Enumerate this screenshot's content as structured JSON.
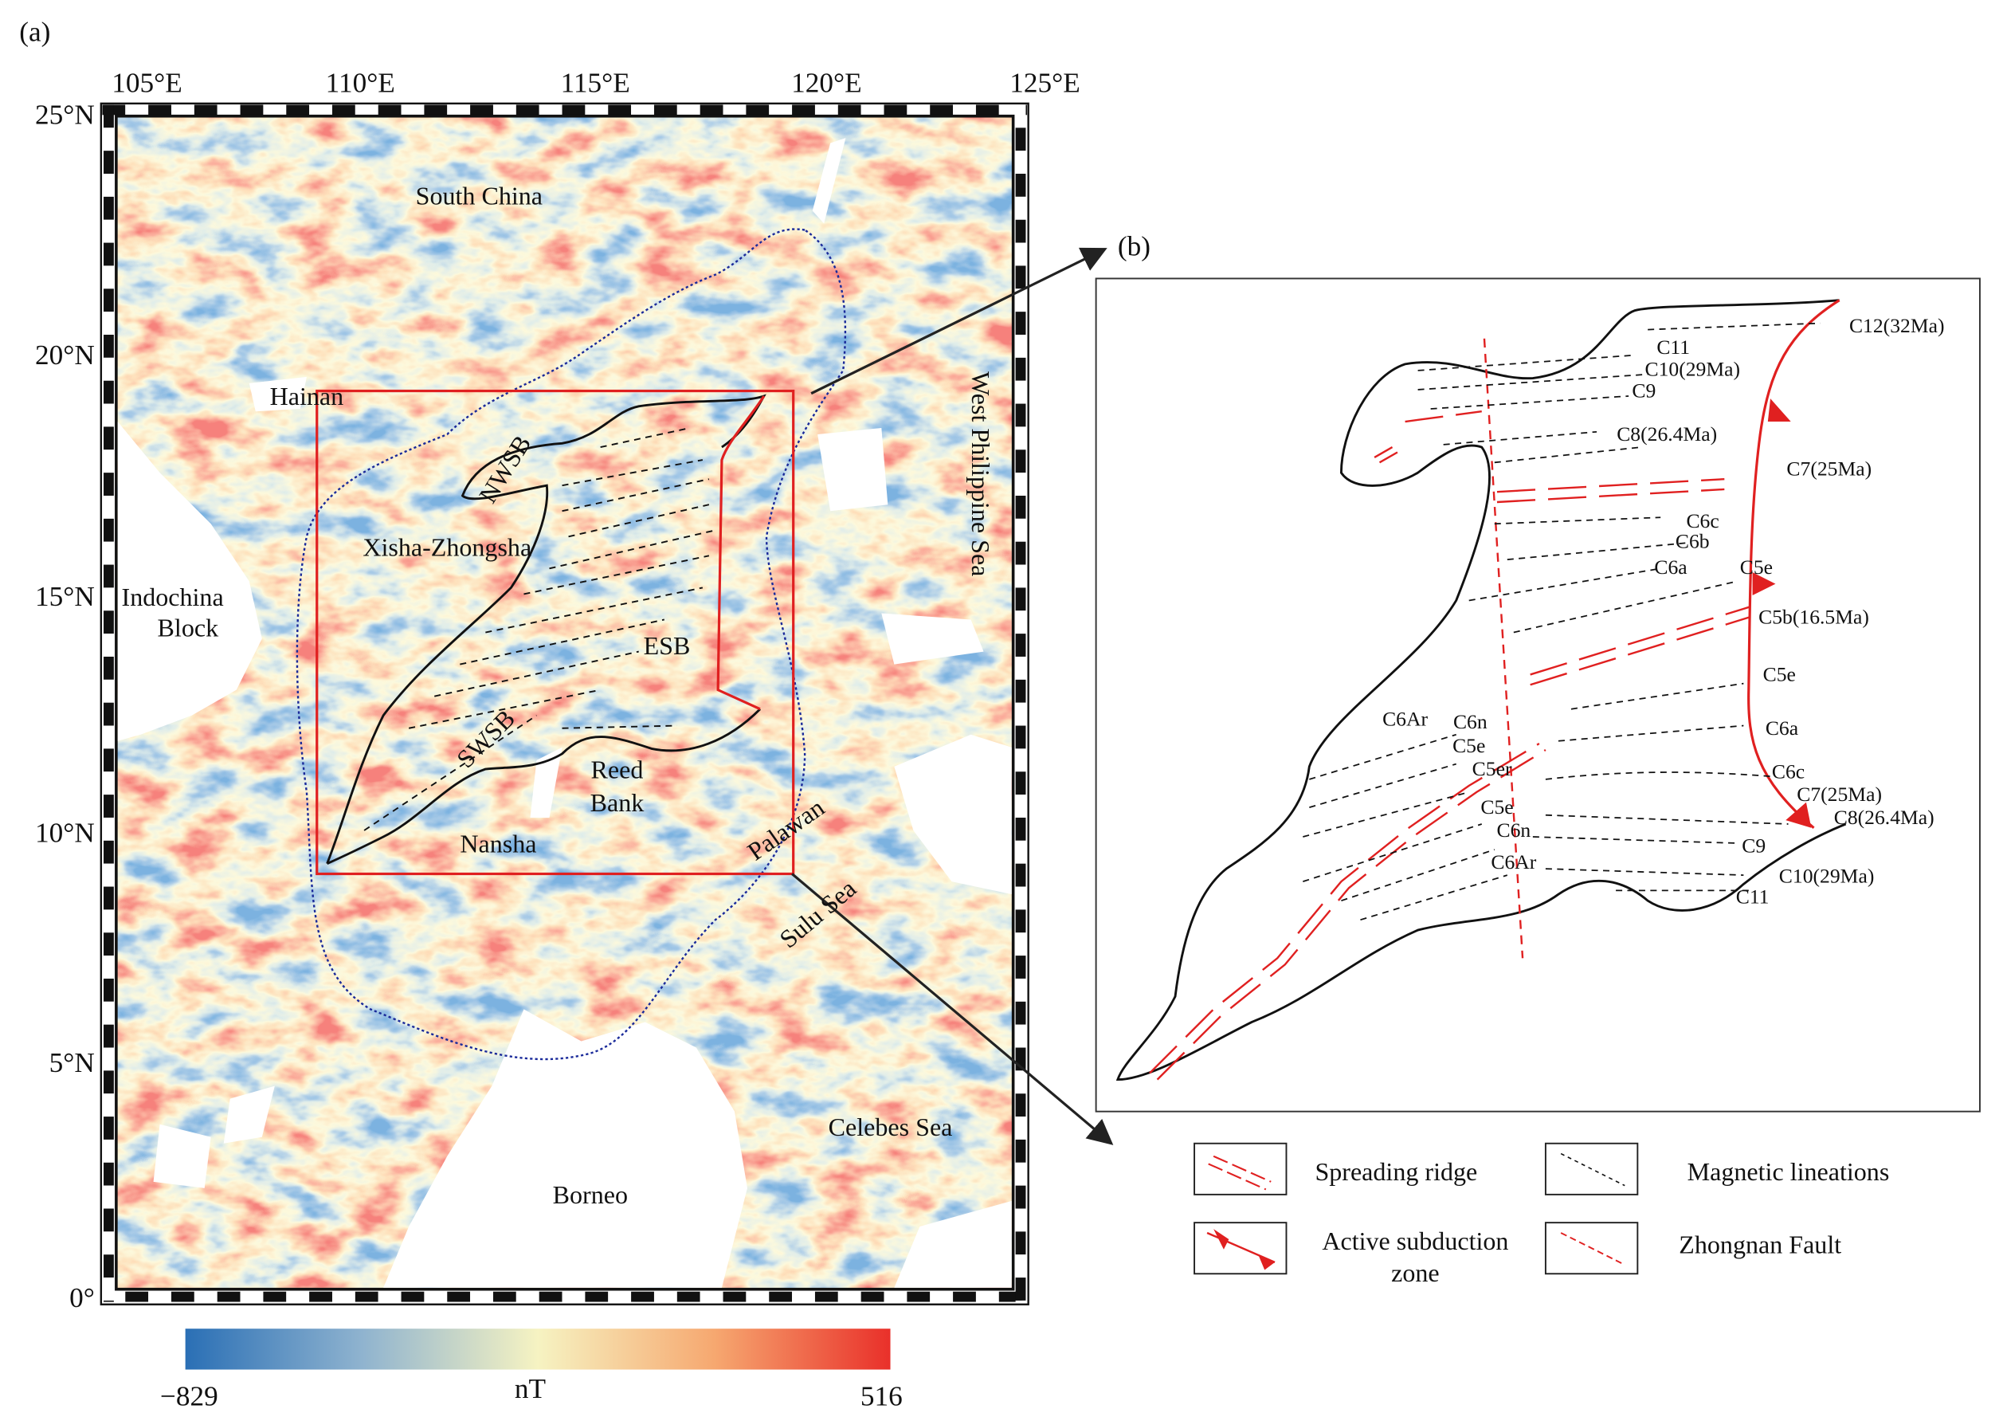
{
  "panel_a": {
    "label": "(a)",
    "lon_labels": [
      "105°E",
      "110°E",
      "115°E",
      "120°E",
      "125°E"
    ],
    "lat_labels": [
      "25°N",
      "20°N",
      "15°N",
      "10°N",
      "5°N",
      "0°"
    ],
    "places": [
      "South China",
      "Hainan",
      "Xisha-Zhongsha",
      "Indochina",
      "Block",
      "NWSB",
      "ESB",
      "SWSB",
      "Reed",
      "Bank",
      "Nansha",
      "Palawan",
      "Sulu Sea",
      "Celebes Sea",
      "Borneo",
      "West Philippine Sea"
    ]
  },
  "colorbar": {
    "min": "−829",
    "unit": "nT",
    "max": "516"
  },
  "panel_b": {
    "label": "(b)",
    "lineations": [
      "C12(32Ma)",
      "C11",
      "C10(29Ma)",
      "C9",
      "C8(26.4Ma)",
      "C7(25Ma)",
      "C6c",
      "C6b",
      "C6a",
      "C5e",
      "C5b(16.5Ma)",
      "C5e",
      "C6a",
      "C6Ar",
      "C6n",
      "C5e",
      "C5er",
      "C6c",
      "C7(25Ma)",
      "C5e",
      "C8(26.4Ma)",
      "C6n",
      "C9",
      "C6Ar",
      "C10(29Ma)",
      "C11"
    ]
  },
  "legend": {
    "spreading_ridge": "Spreading ridge",
    "magnetic_lineations": "Magnetic lineations",
    "active_subduction_zone": [
      "Active subduction",
      "zone"
    ],
    "zhongnan_fault": "Zhongnan Fault"
  }
}
